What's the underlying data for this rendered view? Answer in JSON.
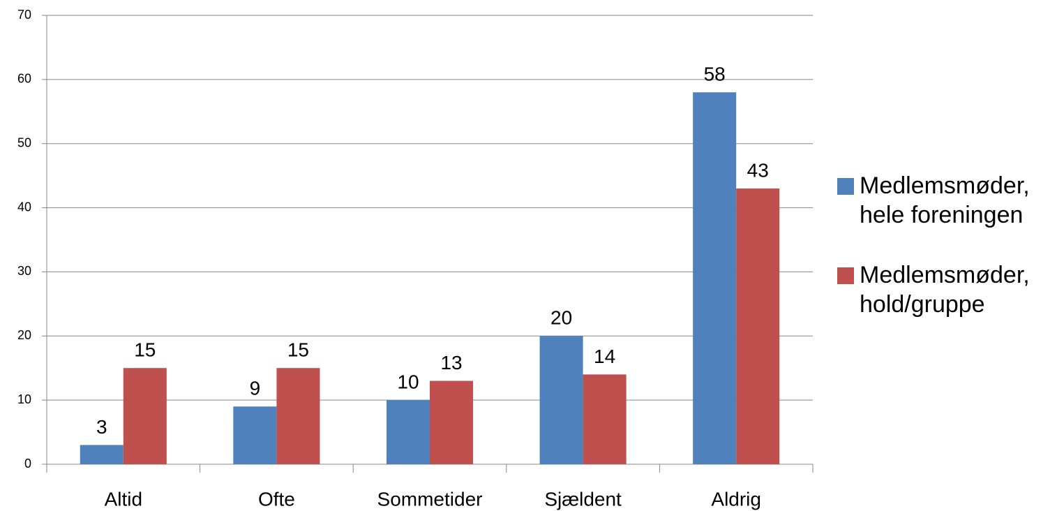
{
  "chart_data": {
    "type": "bar",
    "categories": [
      "Altid",
      "Ofte",
      "Sommetider",
      "Sjældent",
      "Aldrig"
    ],
    "series": [
      {
        "name": "Medlemsmøder, hele foreningen",
        "color": "#4f81bd",
        "values": [
          3,
          9,
          10,
          20,
          58
        ]
      },
      {
        "name": "Medlemsmøder, hold/gruppe",
        "color": "#c0504d",
        "values": [
          15,
          15,
          13,
          14,
          43
        ]
      }
    ],
    "ylim": [
      0,
      70
    ],
    "yticks": [
      0,
      10,
      20,
      30,
      40,
      50,
      60,
      70
    ],
    "grid": true,
    "legend": "right"
  }
}
